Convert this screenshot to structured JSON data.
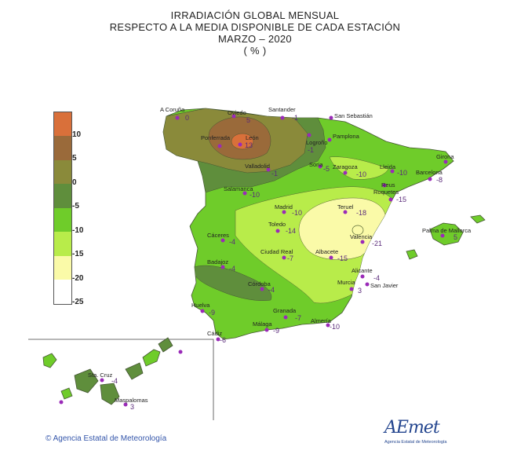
{
  "title": {
    "line1": "IRRADIACIÓN GLOBAL MENSUAL",
    "line2": "RESPECTO A LA MEDIA DISPONIBLE DE CADA ESTACIÓN",
    "line3": "MARZO  – 2020",
    "line4": "( % )"
  },
  "legend": {
    "labels": [
      "10",
      "5",
      "0",
      "-5",
      "-10",
      "-15",
      "-20",
      "-25"
    ],
    "colors": [
      "#d9703a",
      "#9a6a3a",
      "#8a8a3a",
      "#5f8e3c",
      "#6fcc2a",
      "#b8ec4a",
      "#fafaa8",
      "#ffffff"
    ]
  },
  "stations": [
    {
      "name": "A Coruña",
      "value": "0"
    },
    {
      "name": "Oviedo",
      "value": "5"
    },
    {
      "name": "Santander",
      "value": "-1"
    },
    {
      "name": "San Sebastián",
      "value": ""
    },
    {
      "name": "Ponferrada",
      "value": ""
    },
    {
      "name": "León",
      "value": "13"
    },
    {
      "name": "Logroño",
      "value": "-1"
    },
    {
      "name": "Pamplona",
      "value": ""
    },
    {
      "name": "Valladolid",
      "value": "-1"
    },
    {
      "name": "Soria",
      "value": "-5"
    },
    {
      "name": "Zaragoza",
      "value": "-10"
    },
    {
      "name": "Lleida",
      "value": "-10"
    },
    {
      "name": "Girona",
      "value": ""
    },
    {
      "name": "Barcelona",
      "value": "-8"
    },
    {
      "name": "Reus",
      "value": ""
    },
    {
      "name": "Roquetes",
      "value": "-15"
    },
    {
      "name": "Salamanca",
      "value": "-10"
    },
    {
      "name": "Madrid",
      "value": "-10"
    },
    {
      "name": "Teruel",
      "value": "-18"
    },
    {
      "name": "Toledo",
      "value": "-14"
    },
    {
      "name": "Valencia",
      "value": "-21"
    },
    {
      "name": "Palma de Mallorca",
      "value": "5"
    },
    {
      "name": "Cáceres",
      "value": "-4"
    },
    {
      "name": "Ciudad Real",
      "value": "-7"
    },
    {
      "name": "Albacete",
      "value": "-15"
    },
    {
      "name": "Badajoz",
      "value": "-4"
    },
    {
      "name": "Alicante",
      "value": "-4"
    },
    {
      "name": "Murcia",
      "value": "3"
    },
    {
      "name": "San Javier",
      "value": ""
    },
    {
      "name": "Córdoba",
      "value": "-4"
    },
    {
      "name": "Huelva",
      "value": "-9"
    },
    {
      "name": "Granada",
      "value": "-7"
    },
    {
      "name": "Almería",
      "value": "-10"
    },
    {
      "name": "Málaga",
      "value": "-9"
    },
    {
      "name": "Cádiz",
      "value": "-6"
    },
    {
      "name": "Sta. Cruz",
      "value": "-4"
    },
    {
      "name": "Maspalomas",
      "value": "3"
    }
  ],
  "copyright": "Agencia Estatal de Meteorología",
  "logo": {
    "main": "AEmet",
    "sub": "Agencia Estatal de Meteorología"
  }
}
